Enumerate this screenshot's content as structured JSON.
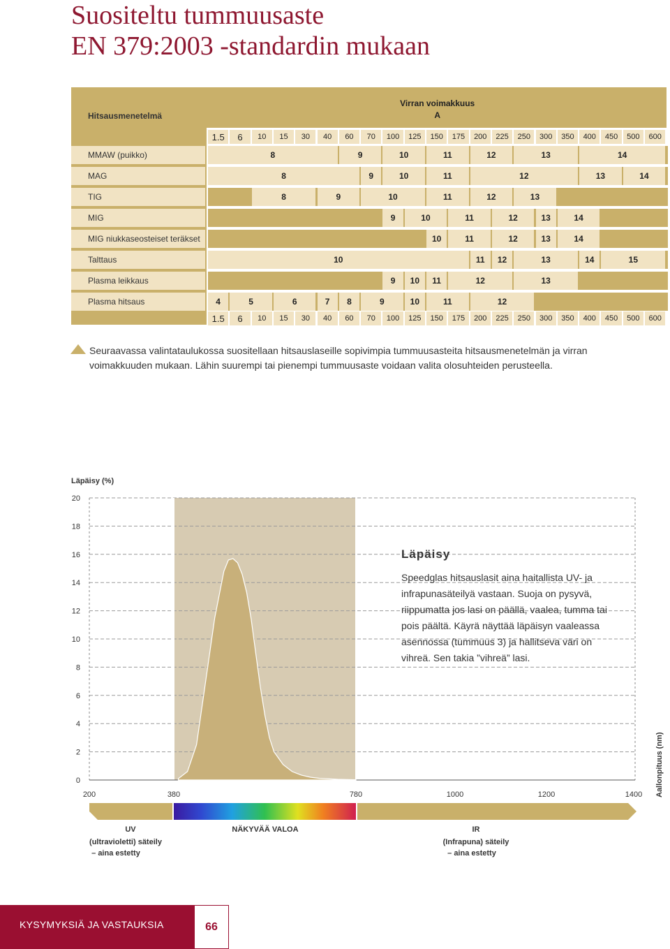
{
  "title": [
    "Suositeltu tummuusaste",
    "EN 379:2003 -standardin mukaan"
  ],
  "table": {
    "method_header": "Hitsausmenetelmä",
    "current_header": "Virran voimakkuus",
    "current_unit": "A",
    "currents": [
      "1.5",
      "6",
      "10",
      "15",
      "30",
      "40",
      "60",
      "70",
      "100",
      "125",
      "150",
      "175",
      "200",
      "225",
      "250",
      "300",
      "350",
      "400",
      "450",
      "500",
      "600"
    ],
    "rows": [
      {
        "name": "MMAW (puikko)",
        "labels": [
          [
            "8",
            0,
            6
          ],
          [
            "9",
            6,
            8
          ],
          [
            "10",
            8,
            10
          ],
          [
            "11",
            10,
            12
          ],
          [
            "12",
            12,
            14
          ],
          [
            "13",
            14,
            17
          ],
          [
            "14",
            17,
            21
          ]
        ]
      },
      {
        "name": "MAG",
        "labels": [
          [
            "8",
            0,
            7
          ],
          [
            "9",
            7,
            8
          ],
          [
            "10",
            8,
            10
          ],
          [
            "11",
            10,
            12
          ],
          [
            "12",
            12,
            17
          ],
          [
            "13",
            17,
            19
          ],
          [
            "14",
            19,
            21
          ]
        ]
      },
      {
        "name": "TIG",
        "labels": [
          [
            "8",
            2,
            5
          ],
          [
            "9",
            5,
            7
          ],
          [
            "10",
            7,
            10
          ],
          [
            "11",
            10,
            12
          ],
          [
            "12",
            12,
            14
          ],
          [
            "13",
            14,
            16
          ]
        ]
      },
      {
        "name": "MIG",
        "labels": [
          [
            "9",
            8,
            9
          ],
          [
            "10",
            9,
            11
          ],
          [
            "11",
            11,
            13
          ],
          [
            "12",
            13,
            15
          ],
          [
            "13",
            15,
            16
          ],
          [
            "14",
            16,
            18
          ]
        ]
      },
      {
        "name": "MIG niukkaseosteiset teräkset",
        "labels": [
          [
            "10",
            10,
            11
          ],
          [
            "11",
            11,
            13
          ],
          [
            "12",
            13,
            15
          ],
          [
            "13",
            15,
            16
          ],
          [
            "14",
            16,
            18
          ]
        ]
      },
      {
        "name": "Talttaus",
        "labels": [
          [
            "10",
            0,
            12
          ],
          [
            "11",
            12,
            13
          ],
          [
            "12",
            13,
            14
          ],
          [
            "13",
            14,
            17
          ],
          [
            "14",
            17,
            18
          ],
          [
            "15",
            18,
            21
          ]
        ]
      },
      {
        "name": "Plasma leikkaus",
        "labels": [
          [
            "9",
            8,
            9
          ],
          [
            "10",
            9,
            10
          ],
          [
            "11",
            10,
            11
          ],
          [
            "12",
            11,
            14
          ],
          [
            "13",
            14,
            17
          ]
        ]
      },
      {
        "name": "Plasma hitsaus",
        "labels": [
          [
            "4",
            0,
            1
          ],
          [
            "5",
            1,
            3
          ],
          [
            "6",
            3,
            5
          ],
          [
            "7",
            5,
            6
          ],
          [
            "8",
            6,
            7
          ],
          [
            "9",
            7,
            9
          ],
          [
            "10",
            9,
            10
          ],
          [
            "11",
            10,
            12
          ],
          [
            "12",
            12,
            15
          ]
        ]
      }
    ]
  },
  "note": "Seuraavassa valintataulukossa suositellaan hitsauslaseille sopivimpia tummuusasteita hitsausmenetelmän ja virran voimakkuuden mukaan. Lähin suurempi tai pienempi tummuusaste voidaan valita olosuhteiden perusteella.",
  "chart_data": {
    "type": "area",
    "ylabel": "Läpäisy (%)",
    "xlabel": "Aallonpituus (nm)",
    "yticks": [
      0,
      2,
      4,
      6,
      8,
      10,
      12,
      14,
      16,
      18,
      20
    ],
    "xticks": [
      200,
      380,
      780,
      1000,
      1200,
      1400
    ],
    "ylim": [
      0,
      20
    ],
    "x": [
      390,
      410,
      430,
      450,
      470,
      490,
      500,
      510,
      520,
      530,
      540,
      550,
      560,
      570,
      580,
      590,
      600,
      620,
      640,
      660,
      680,
      700,
      740,
      780
    ],
    "y": [
      0.1,
      0.6,
      2.5,
      7.0,
      11.5,
      14.8,
      15.6,
      15.7,
      15.4,
      14.6,
      13.3,
      11.4,
      9.0,
      6.6,
      4.6,
      3.0,
      2.0,
      1.1,
      0.6,
      0.35,
      0.2,
      0.12,
      0.05,
      0.02
    ],
    "regions": [
      {
        "label": "UV",
        "desc": "(ultravioletti) säteily",
        "desc2": "– aina estetty"
      },
      {
        "label": "NÄKYVÄÄ VALOA"
      },
      {
        "label": "IR",
        "desc": "(Infrapuna) säteily",
        "desc2": "– aina estetty"
      }
    ],
    "box_title": "Läpäisy",
    "box_lines": [
      "Speedglas hitsauslasit aina haitallista UV- ja",
      "infrapunasäteilyä vastaan. Suoja on pysyvä,",
      "riippumatta jos lasi on päällä, vaalea, tumma tai",
      "pois päältä. Käyrä näyttää läpäisyn vaaleassa",
      "asennossa (tummuus 3) ja hallitseva väri on",
      "vihreä. Sen takia ”vihreä” lasi."
    ]
  },
  "colors": {
    "accent": "#9a0f31",
    "tan": "#c9b06a",
    "light": "#f1e3c3",
    "chart_fill": "#c8b07a",
    "visible_bg": "#d7cbb2"
  },
  "footer": {
    "label": "KYSYMYKSIÄ JA VASTAUKSIA",
    "page": "66"
  }
}
